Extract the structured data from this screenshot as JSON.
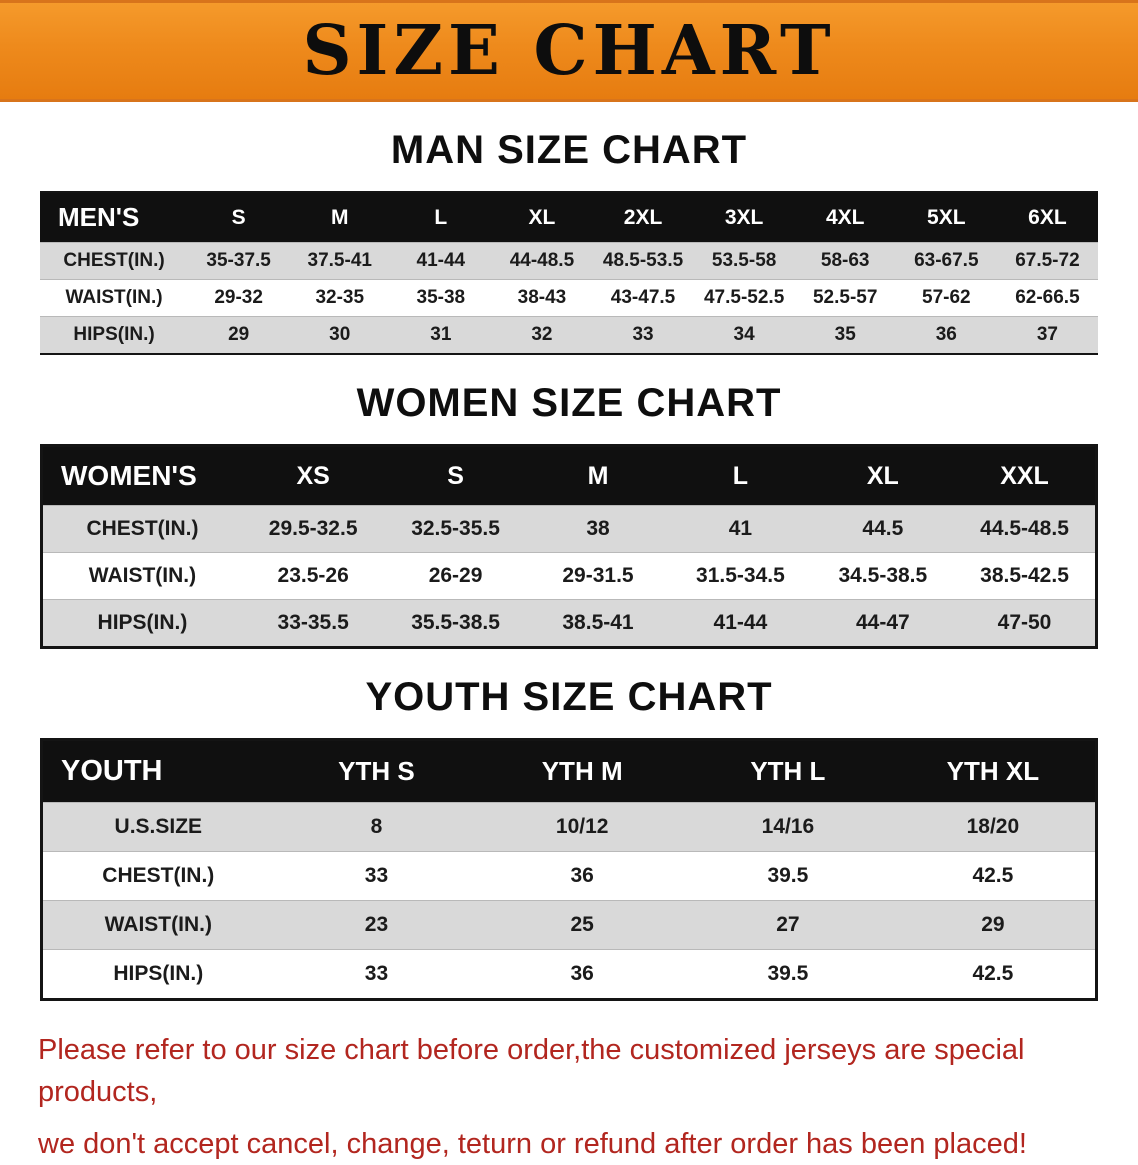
{
  "banner": {
    "title": "SIZE CHART"
  },
  "sections": [
    {
      "heading": "MAN SIZE CHART",
      "table": {
        "header": [
          "MEN'S",
          "S",
          "M",
          "L",
          "XL",
          "2XL",
          "3XL",
          "4XL",
          "5XL",
          "6XL"
        ],
        "rows": [
          [
            "CHEST(IN.)",
            "35-37.5",
            "37.5-41",
            "41-44",
            "44-48.5",
            "48.5-53.5",
            "53.5-58",
            "58-63",
            "63-67.5",
            "67.5-72"
          ],
          [
            "WAIST(IN.)",
            "29-32",
            "32-35",
            "35-38",
            "38-43",
            "43-47.5",
            "47.5-52.5",
            "52.5-57",
            "57-62",
            "62-66.5"
          ],
          [
            "HIPS(IN.)",
            "29",
            "30",
            "31",
            "32",
            "33",
            "34",
            "35",
            "36",
            "37"
          ]
        ]
      }
    },
    {
      "heading": "WOMEN SIZE CHART",
      "table": {
        "header": [
          "WOMEN'S",
          "XS",
          "S",
          "M",
          "L",
          "XL",
          "XXL"
        ],
        "rows": [
          [
            "CHEST(IN.)",
            "29.5-32.5",
            "32.5-35.5",
            "38",
            "41",
            "44.5",
            "44.5-48.5"
          ],
          [
            "WAIST(IN.)",
            "23.5-26",
            "26-29",
            "29-31.5",
            "31.5-34.5",
            "34.5-38.5",
            "38.5-42.5"
          ],
          [
            "HIPS(IN.)",
            "33-35.5",
            "35.5-38.5",
            "38.5-41",
            "41-44",
            "44-47",
            "47-50"
          ]
        ]
      }
    },
    {
      "heading": "YOUTH SIZE CHART",
      "table": {
        "header": [
          "YOUTH",
          "YTH S",
          "YTH M",
          "YTH L",
          "YTH XL"
        ],
        "rows": [
          [
            "U.S.SIZE",
            "8",
            "10/12",
            "14/16",
            "18/20"
          ],
          [
            "CHEST(IN.)",
            "33",
            "36",
            "39.5",
            "42.5"
          ],
          [
            "WAIST(IN.)",
            "23",
            "25",
            "27",
            "29"
          ],
          [
            "HIPS(IN.)",
            "33",
            "36",
            "39.5",
            "42.5"
          ]
        ]
      }
    }
  ],
  "footer": {
    "line1": "Please refer to our size chart before order,the customized jerseys are special products,",
    "line2": "we don't accept cancel, change, teturn or refund after order has been placed!"
  },
  "colors": {
    "banner_orange": "#EE8A1C",
    "header_black": "#101010",
    "row_gray": "#D9D9D9",
    "footer_red": "#B2261F"
  }
}
